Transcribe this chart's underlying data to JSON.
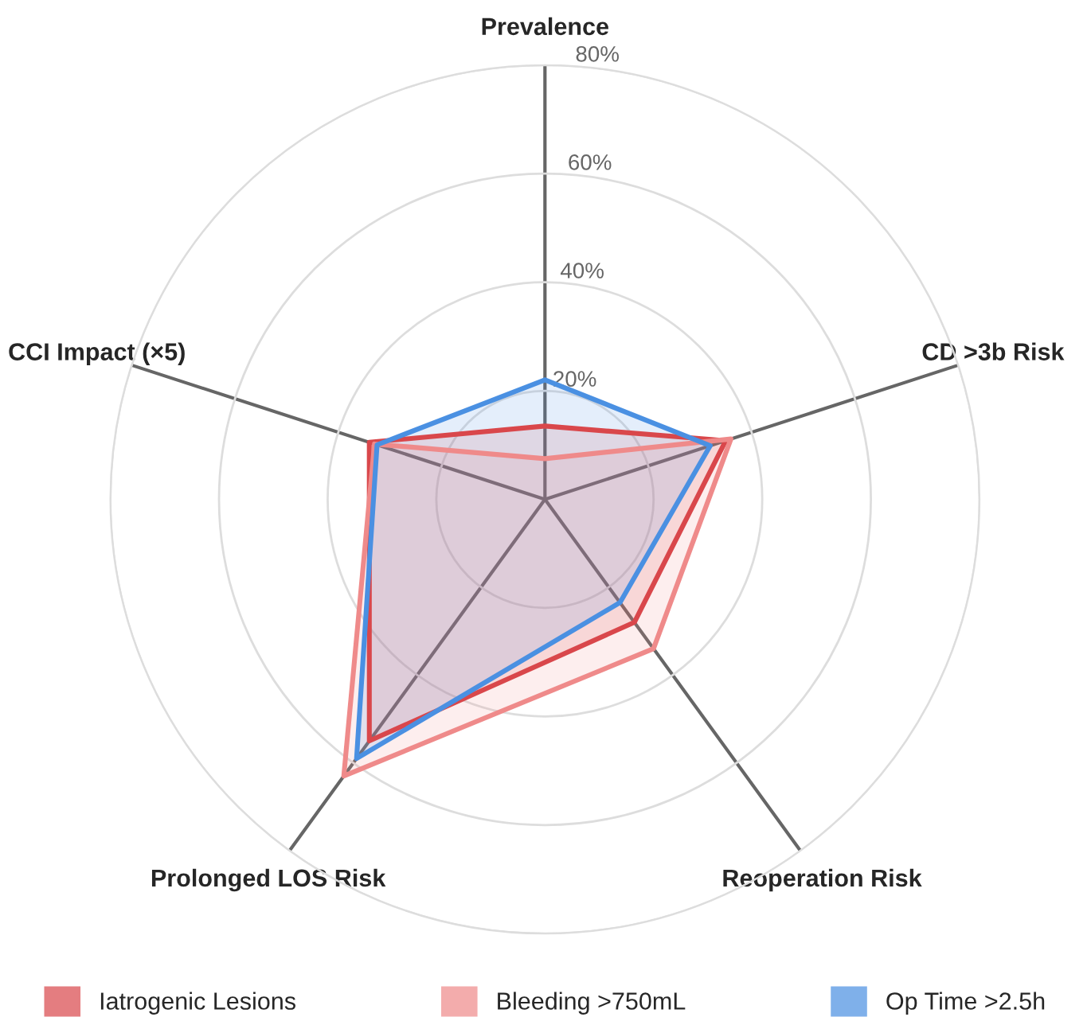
{
  "chart_data": {
    "type": "radar",
    "categories": [
      "Prevalence",
      "CD >3b Risk",
      "Reoperation Risk",
      "Prolonged LOS Risk",
      "CCI Impact (×5)"
    ],
    "series": [
      {
        "name": "Iatrogenic Lesions",
        "color": "#d9474b",
        "values": [
          13.5,
          35,
          28,
          55,
          34
        ]
      },
      {
        "name": "Bleeding >750mL",
        "color": "#ef8a8a",
        "values": [
          7.5,
          36,
          34,
          63,
          33
        ]
      },
      {
        "name": "Op Time >2.5h",
        "color": "#4a90e2",
        "values": [
          22,
          32,
          23.5,
          59,
          32.5
        ]
      }
    ],
    "ylim": [
      0,
      80
    ],
    "yticks": [
      {
        "value": 20,
        "label": "20%"
      },
      {
        "value": 40,
        "label": "40%"
      },
      {
        "value": 60,
        "label": "60%"
      },
      {
        "value": 80,
        "label": "80%"
      }
    ],
    "grid": true,
    "legend": "bottom"
  }
}
